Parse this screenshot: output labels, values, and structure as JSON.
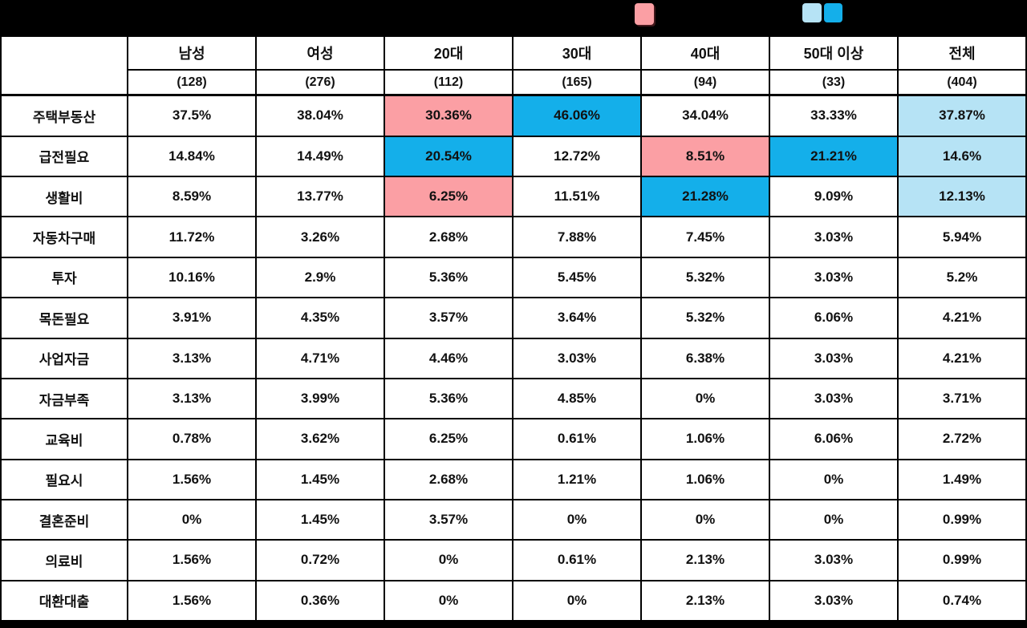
{
  "legend": {
    "pink_color": "#FB9FA4",
    "blue_color": "#14AFEA",
    "light_blue_color": "#B6E3F5"
  },
  "chart_data": {
    "type": "table",
    "corner_label": "",
    "columns": [
      "남성",
      "여성",
      "20대",
      "30대",
      "40대",
      "50대 이상",
      "전체"
    ],
    "counts": [
      "(128)",
      "(276)",
      "(112)",
      "(165)",
      "(94)",
      "(33)",
      "(404)"
    ],
    "rows": [
      {
        "label": "주택부동산",
        "values": [
          "37.5%",
          "38.04%",
          "30.36%",
          "46.06%",
          "34.04%",
          "33.33%",
          "37.87%"
        ],
        "highlights": [
          null,
          null,
          "pink",
          "blue",
          null,
          null,
          "lightblue"
        ]
      },
      {
        "label": "급전필요",
        "values": [
          "14.84%",
          "14.49%",
          "20.54%",
          "12.72%",
          "8.51%",
          "21.21%",
          "14.6%"
        ],
        "highlights": [
          null,
          null,
          "blue",
          null,
          "pink",
          "blue",
          "lightblue"
        ]
      },
      {
        "label": "생활비",
        "values": [
          "8.59%",
          "13.77%",
          "6.25%",
          "11.51%",
          "21.28%",
          "9.09%",
          "12.13%"
        ],
        "highlights": [
          null,
          null,
          "pink",
          null,
          "blue",
          null,
          "lightblue"
        ]
      },
      {
        "label": "자동차구매",
        "values": [
          "11.72%",
          "3.26%",
          "2.68%",
          "7.88%",
          "7.45%",
          "3.03%",
          "5.94%"
        ],
        "highlights": [
          null,
          null,
          null,
          null,
          null,
          null,
          null
        ]
      },
      {
        "label": "투자",
        "values": [
          "10.16%",
          "2.9%",
          "5.36%",
          "5.45%",
          "5.32%",
          "3.03%",
          "5.2%"
        ],
        "highlights": [
          null,
          null,
          null,
          null,
          null,
          null,
          null
        ]
      },
      {
        "label": "목돈필요",
        "values": [
          "3.91%",
          "4.35%",
          "3.57%",
          "3.64%",
          "5.32%",
          "6.06%",
          "4.21%"
        ],
        "highlights": [
          null,
          null,
          null,
          null,
          null,
          null,
          null
        ]
      },
      {
        "label": "사업자금",
        "values": [
          "3.13%",
          "4.71%",
          "4.46%",
          "3.03%",
          "6.38%",
          "3.03%",
          "4.21%"
        ],
        "highlights": [
          null,
          null,
          null,
          null,
          null,
          null,
          null
        ]
      },
      {
        "label": "자금부족",
        "values": [
          "3.13%",
          "3.99%",
          "5.36%",
          "4.85%",
          "0%",
          "3.03%",
          "3.71%"
        ],
        "highlights": [
          null,
          null,
          null,
          null,
          null,
          null,
          null
        ]
      },
      {
        "label": "교육비",
        "values": [
          "0.78%",
          "3.62%",
          "6.25%",
          "0.61%",
          "1.06%",
          "6.06%",
          "2.72%"
        ],
        "highlights": [
          null,
          null,
          null,
          null,
          null,
          null,
          null
        ]
      },
      {
        "label": "필요시",
        "values": [
          "1.56%",
          "1.45%",
          "2.68%",
          "1.21%",
          "1.06%",
          "0%",
          "1.49%"
        ],
        "highlights": [
          null,
          null,
          null,
          null,
          null,
          null,
          null
        ]
      },
      {
        "label": "결혼준비",
        "values": [
          "0%",
          "1.45%",
          "3.57%",
          "0%",
          "0%",
          "0%",
          "0.99%"
        ],
        "highlights": [
          null,
          null,
          null,
          null,
          null,
          null,
          null
        ]
      },
      {
        "label": "의료비",
        "values": [
          "1.56%",
          "0.72%",
          "0%",
          "0.61%",
          "2.13%",
          "3.03%",
          "0.99%"
        ],
        "highlights": [
          null,
          null,
          null,
          null,
          null,
          null,
          null
        ]
      },
      {
        "label": "대환대출",
        "values": [
          "1.56%",
          "0.36%",
          "0%",
          "0%",
          "2.13%",
          "3.03%",
          "0.74%"
        ],
        "highlights": [
          null,
          null,
          null,
          null,
          null,
          null,
          null
        ]
      }
    ]
  }
}
